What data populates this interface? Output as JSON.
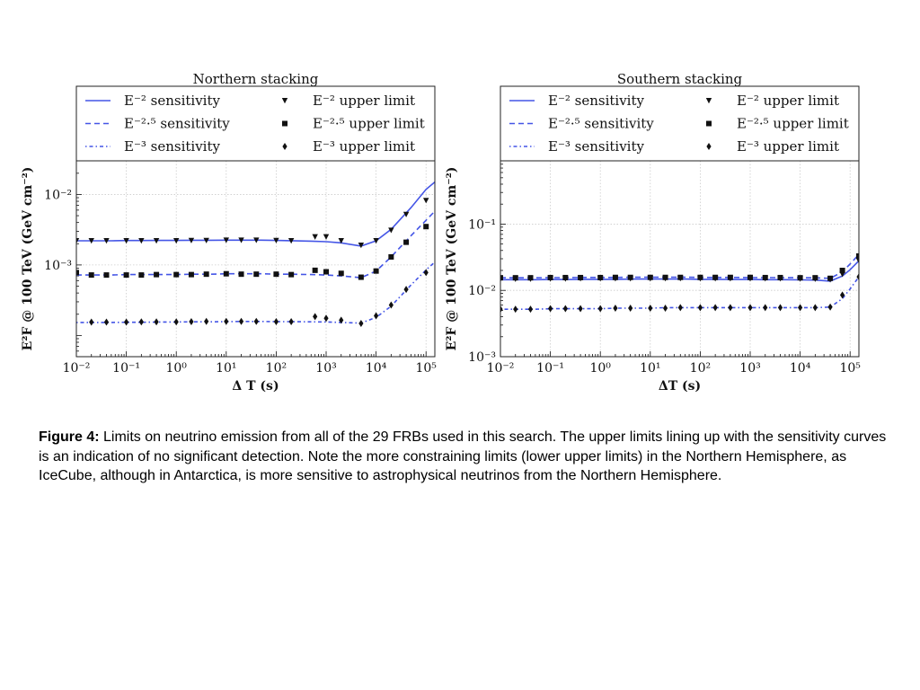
{
  "chart_data": [
    {
      "type": "line",
      "title": "Northern stacking",
      "xlabel": "Δ T (s)",
      "ylabel": "E²F @ 100 TeV (GeV cm⁻²)",
      "xscale": "log",
      "yscale": "log",
      "xlim": [
        0.01,
        150000
      ],
      "ylim": [
        5e-05,
        0.03
      ],
      "xticks": [
        0.01,
        0.1,
        1,
        10,
        100,
        1000,
        10000,
        100000
      ],
      "xtick_labels": [
        "10⁻²",
        "10⁻¹",
        "10⁰",
        "10¹",
        "10²",
        "10³",
        "10⁴",
        "10⁵"
      ],
      "yticks": [
        0.001,
        0.01
      ],
      "ytick_labels": [
        "10⁻³",
        "10⁻²"
      ],
      "grid": true,
      "legend_position": "top",
      "legend": [
        {
          "label": "E⁻² sensitivity",
          "kind": "line",
          "dash": "solid"
        },
        {
          "label": "E⁻² upper limit",
          "kind": "marker",
          "marker": "triangle-down"
        },
        {
          "label": "E⁻²·⁵ sensitivity",
          "kind": "line",
          "dash": "dashed"
        },
        {
          "label": "E⁻²·⁵ upper limit",
          "kind": "marker",
          "marker": "square"
        },
        {
          "label": "E⁻³ sensitivity",
          "kind": "line",
          "dash": "dotted"
        },
        {
          "label": "E⁻³ upper limit",
          "kind": "marker",
          "marker": "diamond"
        }
      ],
      "sensitivity_x": [
        0.01,
        0.02,
        0.05,
        0.1,
        0.2,
        0.5,
        1,
        2,
        5,
        10,
        20,
        50,
        100,
        200,
        500,
        1000,
        2000,
        5000,
        10000,
        20000,
        50000,
        100000,
        150000
      ],
      "series": [
        {
          "name": "E⁻² sensitivity",
          "kind": "line",
          "dash": "solid",
          "values": [
            0.0022,
            0.0022,
            0.0022,
            0.00222,
            0.00222,
            0.00223,
            0.00223,
            0.00224,
            0.00224,
            0.00225,
            0.00225,
            0.00225,
            0.00223,
            0.00221,
            0.00218,
            0.00214,
            0.00206,
            0.00185,
            0.0022,
            0.0032,
            0.0065,
            0.0118,
            0.015
          ]
        },
        {
          "name": "E⁻²·⁵ sensitivity",
          "kind": "line",
          "dash": "dashed",
          "values": [
            0.00072,
            0.00072,
            0.00072,
            0.00073,
            0.00073,
            0.00073,
            0.00073,
            0.00074,
            0.00074,
            0.00075,
            0.00075,
            0.00075,
            0.00074,
            0.00074,
            0.00073,
            0.00072,
            0.0007,
            0.00066,
            0.00082,
            0.0013,
            0.0026,
            0.0043,
            0.0058
          ]
        },
        {
          "name": "E⁻³ sensitivity",
          "kind": "line",
          "dash": "dotted",
          "values": [
            0.000153,
            0.000153,
            0.000153,
            0.000154,
            0.000154,
            0.000155,
            0.000155,
            0.000156,
            0.000156,
            0.000157,
            0.000158,
            0.000158,
            0.000157,
            0.000157,
            0.000156,
            0.000155,
            0.000153,
            0.00015,
            0.00018,
            0.00026,
            0.00052,
            0.00085,
            0.0011
          ]
        },
        {
          "name": "E⁻² upper limit",
          "kind": "marker",
          "marker": "triangle-down",
          "x": [
            0.01,
            0.02,
            0.04,
            0.1,
            0.2,
            0.4,
            1,
            2,
            4,
            10,
            20,
            40,
            100,
            200,
            600,
            1000,
            2000,
            5000,
            10000,
            20000,
            40000,
            100000
          ],
          "values": [
            0.0022,
            0.0022,
            0.0022,
            0.0022,
            0.0022,
            0.0022,
            0.0022,
            0.00222,
            0.00222,
            0.00224,
            0.00224,
            0.00224,
            0.00222,
            0.0022,
            0.0025,
            0.0025,
            0.0022,
            0.0019,
            0.0022,
            0.0031,
            0.0052,
            0.0082
          ]
        },
        {
          "name": "E⁻²·⁵ upper limit",
          "kind": "marker",
          "marker": "square",
          "x": [
            0.01,
            0.02,
            0.04,
            0.1,
            0.2,
            0.4,
            1,
            2,
            4,
            10,
            20,
            40,
            100,
            200,
            600,
            1000,
            2000,
            5000,
            10000,
            20000,
            40000,
            100000
          ],
          "values": [
            0.00078,
            0.00072,
            0.00072,
            0.00072,
            0.00072,
            0.00073,
            0.00073,
            0.00073,
            0.00074,
            0.00075,
            0.00074,
            0.00074,
            0.00074,
            0.00073,
            0.00084,
            0.0008,
            0.00076,
            0.00067,
            0.00082,
            0.0013,
            0.0021,
            0.0035
          ]
        },
        {
          "name": "E⁻³ upper limit",
          "kind": "marker",
          "marker": "diamond",
          "x": [
            0.02,
            0.04,
            0.1,
            0.2,
            0.4,
            1,
            2,
            4,
            10,
            20,
            40,
            100,
            200,
            600,
            1000,
            2000,
            5000,
            10000,
            20000,
            40000,
            100000
          ],
          "values": [
            0.000155,
            0.000155,
            0.000155,
            0.000156,
            0.000156,
            0.000156,
            0.000157,
            0.000158,
            0.000158,
            0.000158,
            0.000158,
            0.000157,
            0.000157,
            0.000185,
            0.000175,
            0.000165,
            0.000148,
            0.00019,
            0.00027,
            0.00045,
            0.00078
          ]
        }
      ]
    },
    {
      "type": "line",
      "title": "Southern stacking",
      "xlabel": "ΔT (s)",
      "ylabel": "E²F @ 100 TeV (GeV cm⁻²)",
      "xscale": "log",
      "yscale": "log",
      "xlim": [
        0.01,
        150000
      ],
      "ylim": [
        0.001,
        0.9
      ],
      "xticks": [
        0.01,
        0.1,
        1,
        10,
        100,
        1000,
        10000,
        100000
      ],
      "xtick_labels": [
        "10⁻²",
        "10⁻¹",
        "10⁰",
        "10¹",
        "10²",
        "10³",
        "10⁴",
        "10⁵"
      ],
      "yticks": [
        0.001,
        0.01,
        0.1
      ],
      "ytick_labels": [
        "10⁻³",
        "10⁻²",
        "10⁻¹"
      ],
      "grid": true,
      "legend_position": "top",
      "legend": [
        {
          "label": "E⁻² sensitivity",
          "kind": "line",
          "dash": "solid"
        },
        {
          "label": "E⁻² upper limit",
          "kind": "marker",
          "marker": "triangle-down"
        },
        {
          "label": "E⁻²·⁵ sensitivity",
          "kind": "line",
          "dash": "dashed"
        },
        {
          "label": "E⁻²·⁵ upper limit",
          "kind": "marker",
          "marker": "square"
        },
        {
          "label": "E⁻³ sensitivity",
          "kind": "line",
          "dash": "dotted"
        },
        {
          "label": "E⁻³ upper limit",
          "kind": "marker",
          "marker": "diamond"
        }
      ],
      "sensitivity_x": [
        0.01,
        0.02,
        0.05,
        0.1,
        0.2,
        0.5,
        1,
        2,
        5,
        10,
        20,
        50,
        100,
        200,
        500,
        1000,
        2000,
        5000,
        10000,
        20000,
        40000,
        70000,
        100000,
        150000
      ],
      "series": [
        {
          "name": "E⁻² sensitivity",
          "kind": "line",
          "dash": "solid",
          "values": [
            0.0145,
            0.0145,
            0.0145,
            0.0146,
            0.0146,
            0.0147,
            0.0147,
            0.0147,
            0.0148,
            0.0148,
            0.0148,
            0.0148,
            0.0147,
            0.0147,
            0.0146,
            0.0146,
            0.0145,
            0.0145,
            0.0144,
            0.0143,
            0.0138,
            0.0165,
            0.0205,
            0.028
          ]
        },
        {
          "name": "E⁻²·⁵ sensitivity",
          "kind": "line",
          "dash": "dashed",
          "values": [
            0.0155,
            0.0155,
            0.0155,
            0.0156,
            0.0156,
            0.0157,
            0.0157,
            0.0157,
            0.0158,
            0.0158,
            0.0158,
            0.0158,
            0.0157,
            0.0157,
            0.0157,
            0.0156,
            0.0156,
            0.0156,
            0.0155,
            0.0155,
            0.0152,
            0.019,
            0.025,
            0.035
          ]
        },
        {
          "name": "E⁻³ sensitivity",
          "kind": "line",
          "dash": "dotted",
          "values": [
            0.0052,
            0.0052,
            0.0052,
            0.0053,
            0.0053,
            0.0053,
            0.0053,
            0.0054,
            0.0054,
            0.0054,
            0.0055,
            0.0055,
            0.0055,
            0.0055,
            0.0055,
            0.0055,
            0.0055,
            0.0055,
            0.0055,
            0.0055,
            0.0056,
            0.0075,
            0.0105,
            0.016
          ]
        },
        {
          "name": "E⁻² upper limit",
          "kind": "marker",
          "marker": "triangle-down",
          "x": [
            0.01,
            0.02,
            0.04,
            0.1,
            0.2,
            0.4,
            1,
            2,
            4,
            10,
            20,
            40,
            100,
            200,
            400,
            1000,
            2000,
            4000,
            10000,
            20000,
            40000,
            70000,
            150000
          ],
          "values": [
            0.0148,
            0.0148,
            0.0148,
            0.0149,
            0.0149,
            0.015,
            0.015,
            0.015,
            0.015,
            0.015,
            0.0151,
            0.0151,
            0.015,
            0.015,
            0.015,
            0.015,
            0.015,
            0.015,
            0.0149,
            0.0148,
            0.0145,
            0.0175,
            0.028
          ]
        },
        {
          "name": "E⁻²·⁵ upper limit",
          "kind": "marker",
          "marker": "square",
          "x": [
            0.01,
            0.02,
            0.04,
            0.1,
            0.2,
            0.4,
            1,
            2,
            4,
            10,
            20,
            40,
            100,
            200,
            400,
            1000,
            2000,
            4000,
            10000,
            20000,
            40000,
            70000,
            150000
          ],
          "values": [
            0.0155,
            0.0155,
            0.0155,
            0.0156,
            0.0156,
            0.0156,
            0.0156,
            0.0157,
            0.0157,
            0.0157,
            0.0157,
            0.0157,
            0.0157,
            0.0157,
            0.0157,
            0.0157,
            0.0156,
            0.0156,
            0.0155,
            0.0155,
            0.0152,
            0.02,
            0.033
          ]
        },
        {
          "name": "E⁻³ upper limit",
          "kind": "marker",
          "marker": "diamond",
          "x": [
            0.01,
            0.02,
            0.04,
            0.1,
            0.2,
            0.4,
            1,
            2,
            4,
            10,
            20,
            40,
            100,
            200,
            400,
            1000,
            2000,
            4000,
            10000,
            20000,
            40000,
            70000,
            150000
          ],
          "values": [
            0.0052,
            0.0052,
            0.0052,
            0.0053,
            0.0053,
            0.0053,
            0.0053,
            0.0054,
            0.0054,
            0.0054,
            0.0054,
            0.0055,
            0.0055,
            0.0055,
            0.0055,
            0.0055,
            0.0055,
            0.0055,
            0.0055,
            0.0055,
            0.0056,
            0.0085,
            0.016
          ]
        }
      ]
    }
  ],
  "style": {
    "line_color": "#4455e6",
    "marker_color": "#111111",
    "grid_color": "#cccccc"
  },
  "caption": {
    "label": "Figure 4:",
    "text": " Limits on neutrino emission from all of the 29 FRBs used in this search. The upper limits lining up with the sensitivity curves is an indication of no significant detection. Note the more constraining limits (lower upper limits) in the Northern Hemisphere, as IceCube, although in Antarctica, is more sensitive to astrophysical neutrinos from the Northern Hemisphere."
  }
}
